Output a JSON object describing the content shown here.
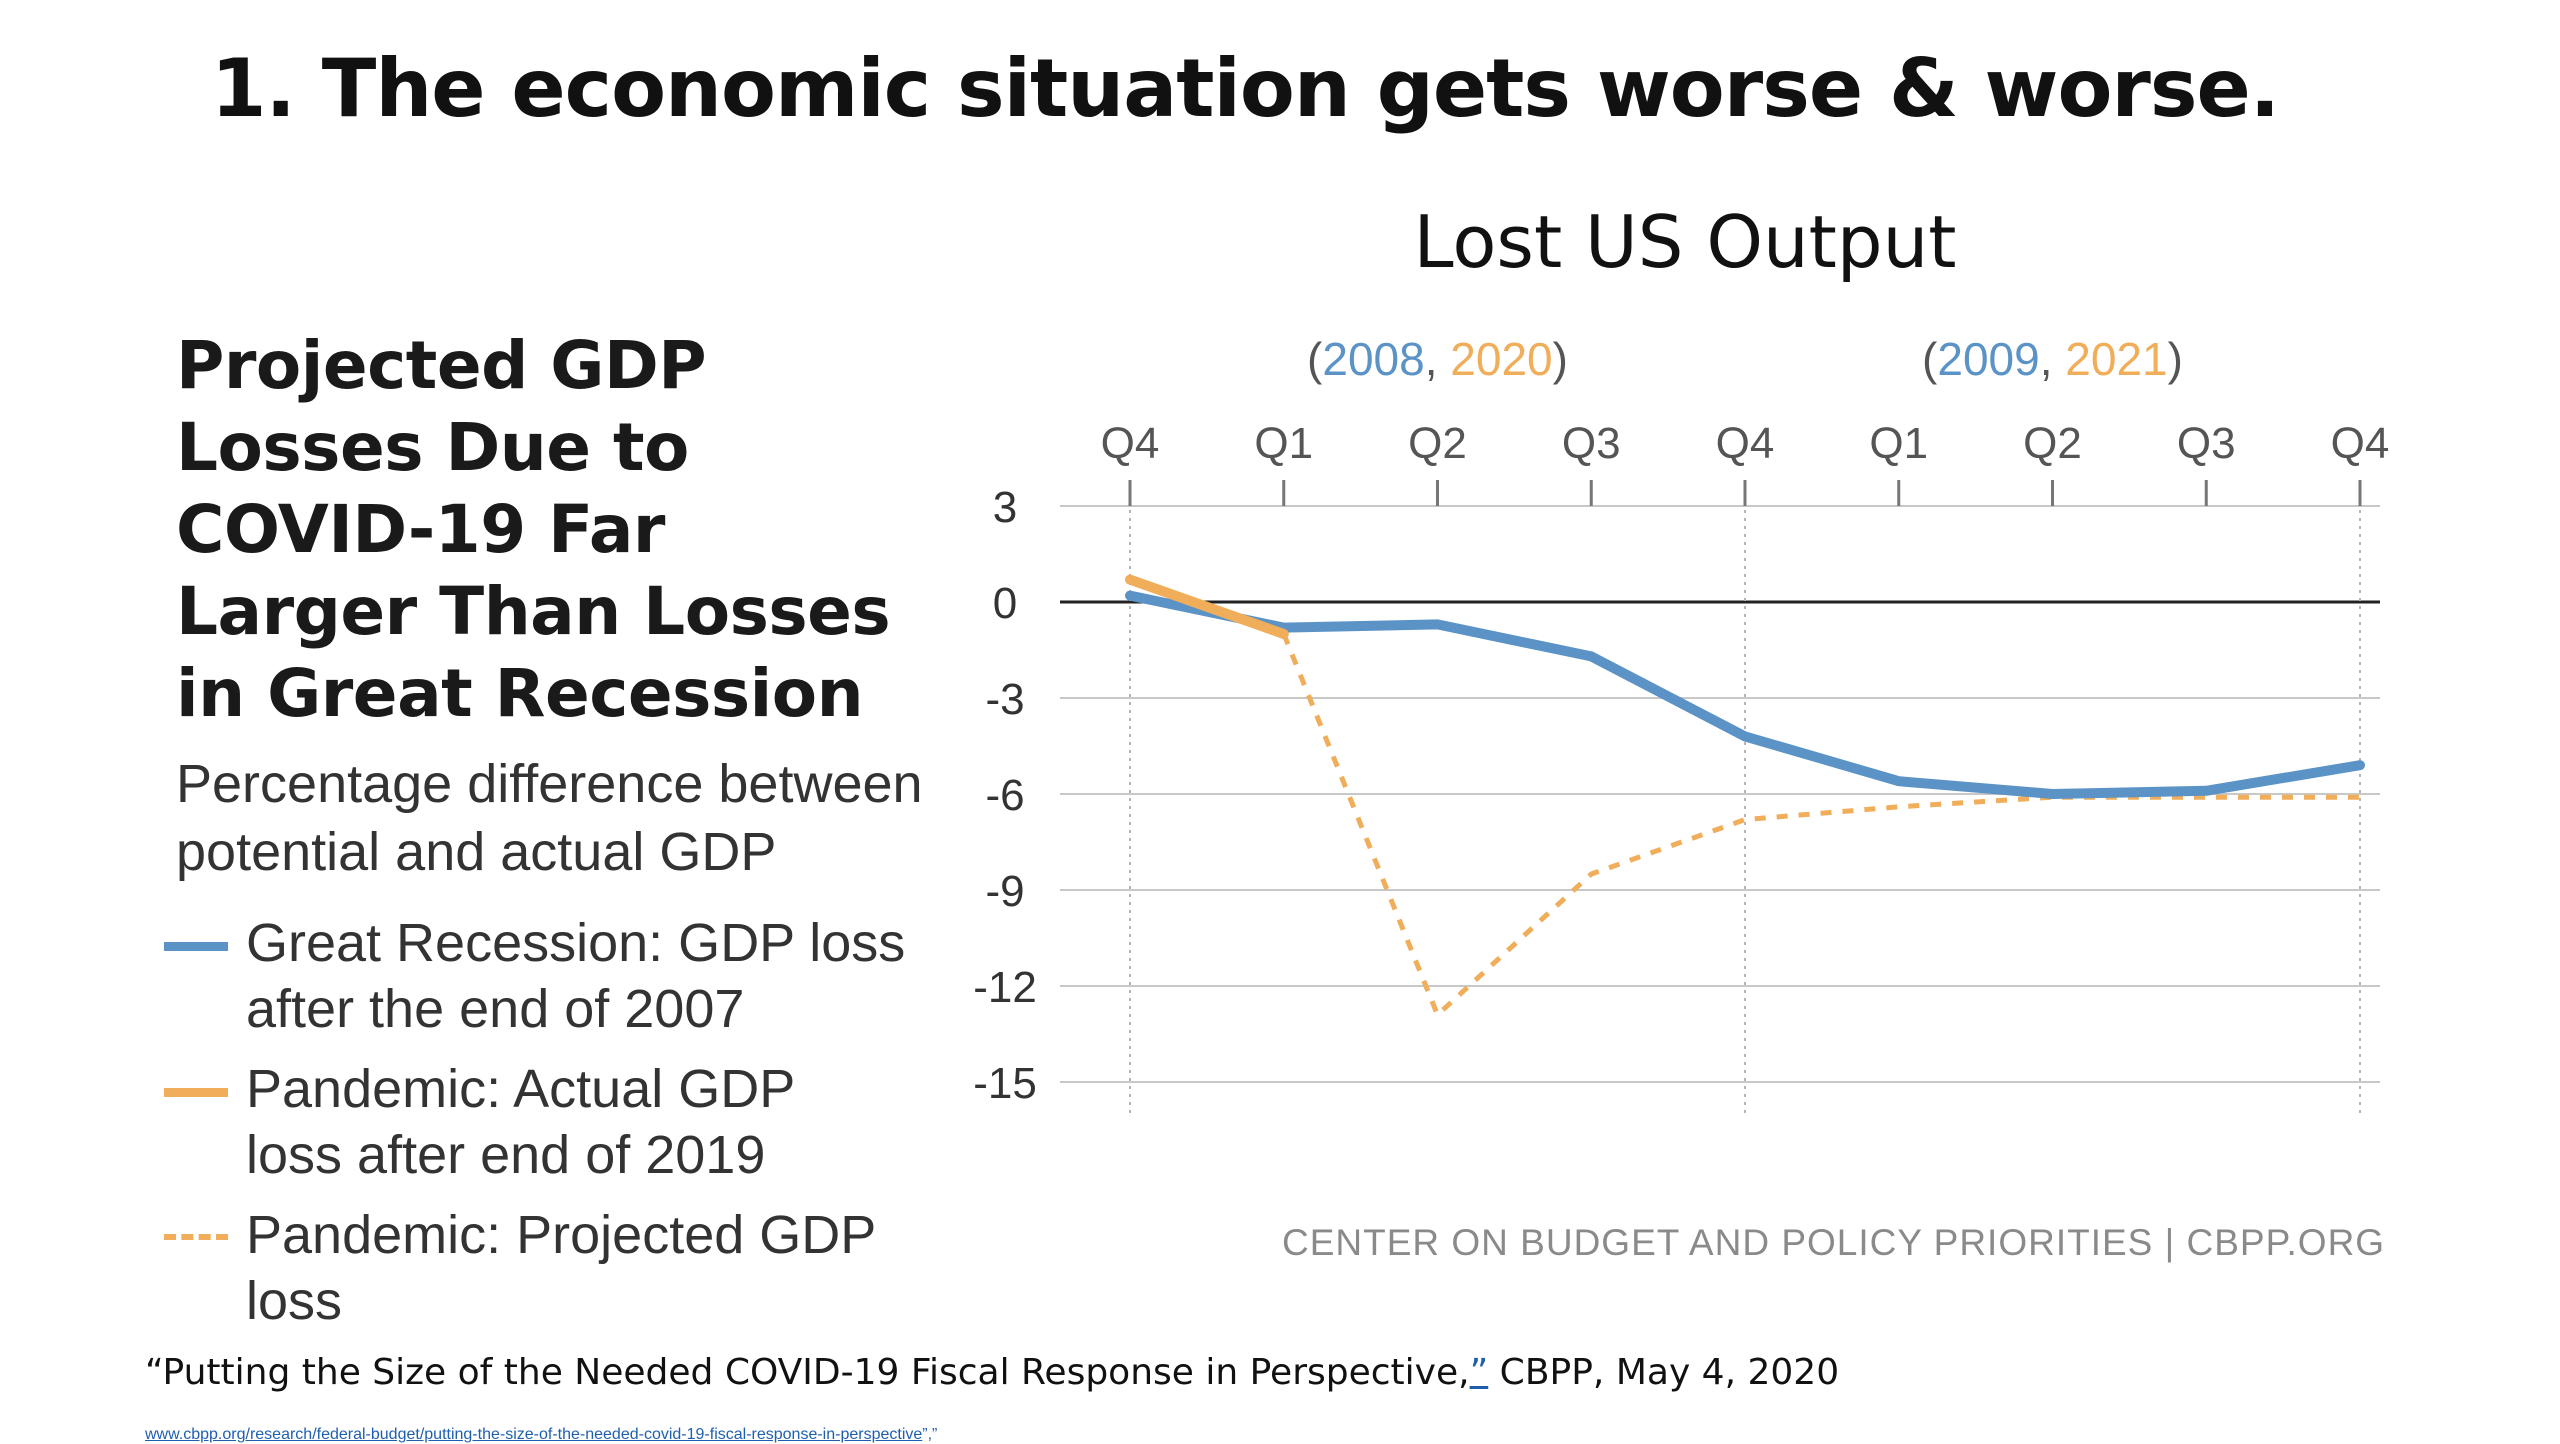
{
  "slide": {
    "title": "1. The economic situation gets worse & worse.",
    "chart_heading": "Lost US Output"
  },
  "panel": {
    "title_lines": [
      "Projected GDP",
      "Losses Due to",
      "COVID-19 Far",
      "Larger Than Losses",
      "in Great Recession"
    ],
    "subtitle_lines": [
      "Percentage difference between",
      "potential and actual GDP"
    ],
    "legend": [
      {
        "lines": [
          "Great Recession: GDP loss",
          "after the end of 2007"
        ],
        "style": "solid-blue"
      },
      {
        "lines": [
          "Pandemic: Actual GDP",
          "loss after end of 2019"
        ],
        "style": "solid-orange"
      },
      {
        "lines": [
          "Pandemic: Projected GDP loss"
        ],
        "style": "dashed-orange"
      }
    ]
  },
  "source_note": "CENTER ON BUDGET AND POLICY PRIORITIES | CBPP.ORG",
  "citation": {
    "text": "“Putting the Size of the Needed COVID-19 Fiscal Response in Perspective,",
    "link_mark": "”",
    "tail": " CBPP, May 4, 2020",
    "url": "www.cbpp.org/research/federal-budget/putting-the-size-of-the-needed-covid-19-fiscal-response-in-perspective",
    "url_tail": "”,”"
  },
  "colors": {
    "great_recession": "#5b93c6",
    "pandemic": "#f0ad5a",
    "grid": "#c8c8c8",
    "zero_line": "#222222",
    "tick_text": "#555555"
  },
  "chart_data": {
    "type": "line",
    "categories": [
      "Q4",
      "Q1",
      "Q2",
      "Q3",
      "Q4",
      "Q1",
      "Q2",
      "Q3",
      "Q4"
    ],
    "year_groups": [
      {
        "label_parts": [
          {
            "text": "(",
            "role": "paren"
          },
          {
            "text": "2008",
            "role": "blue"
          },
          {
            "text": ", ",
            "role": "paren"
          },
          {
            "text": "2020",
            "role": "orange"
          },
          {
            "text": ")",
            "role": "paren"
          }
        ],
        "center_index": 2
      },
      {
        "label_parts": [
          {
            "text": "(",
            "role": "paren"
          },
          {
            "text": "2009",
            "role": "blue"
          },
          {
            "text": ", ",
            "role": "paren"
          },
          {
            "text": "2021",
            "role": "orange"
          },
          {
            "text": ")",
            "role": "paren"
          }
        ],
        "center_index": 6
      }
    ],
    "yticks": [
      3,
      0,
      -3,
      -6,
      -9,
      -12,
      -15
    ],
    "ylim": [
      -15,
      3
    ],
    "zero_line": true,
    "vertical_guides_at": [
      0,
      4,
      8
    ],
    "series": [
      {
        "name": "Great Recession: GDP loss after the end of 2007",
        "style": "solid",
        "color": "#5b93c6",
        "values": [
          0.2,
          -0.8,
          -0.7,
          -1.7,
          -4.2,
          -5.6,
          -6.0,
          -5.9,
          -5.1
        ]
      },
      {
        "name": "Pandemic: Actual GDP loss after end of 2019",
        "style": "solid",
        "color": "#f0ad5a",
        "values": [
          0.7,
          -1.0,
          null,
          null,
          null,
          null,
          null,
          null,
          null
        ]
      },
      {
        "name": "Pandemic: Projected GDP loss",
        "style": "dashed",
        "color": "#f0ad5a",
        "values": [
          null,
          -1.0,
          -12.9,
          -8.5,
          -6.8,
          -6.4,
          -6.1,
          -6.1,
          -6.1
        ]
      }
    ]
  }
}
